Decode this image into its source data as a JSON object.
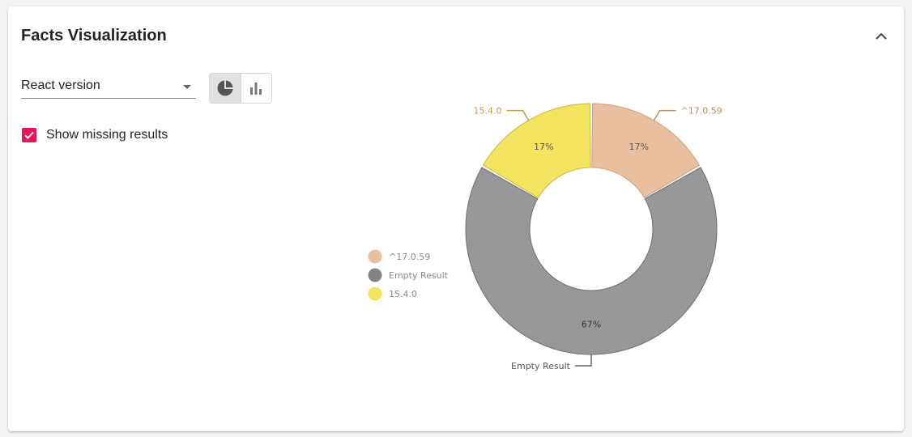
{
  "card": {
    "title": "Facts Visualization"
  },
  "controls": {
    "select": {
      "value": "React version"
    },
    "chart_type_toggle": {
      "options": [
        {
          "name": "pie",
          "icon": "pie-chart-icon",
          "selected": true
        },
        {
          "name": "bar",
          "icon": "bar-chart-icon",
          "selected": false
        }
      ]
    },
    "show_missing": {
      "label": "Show missing results",
      "checked": true
    }
  },
  "chart_data": {
    "type": "pie",
    "variant": "donut",
    "categories": [
      "^17.0.59",
      "Empty Result",
      "15.4.0"
    ],
    "values": [
      1,
      4,
      1
    ],
    "percent_labels": [
      "17%",
      "67%",
      "17%"
    ],
    "colors": [
      "#e9bf9f",
      "#999999",
      "#f2e45e"
    ],
    "label_colors": [
      "#b39163",
      "#555555",
      "#b9a34e"
    ],
    "legend": {
      "position": "left",
      "entries": [
        "^17.0.59",
        "Empty Result",
        "15.4.0"
      ]
    }
  }
}
